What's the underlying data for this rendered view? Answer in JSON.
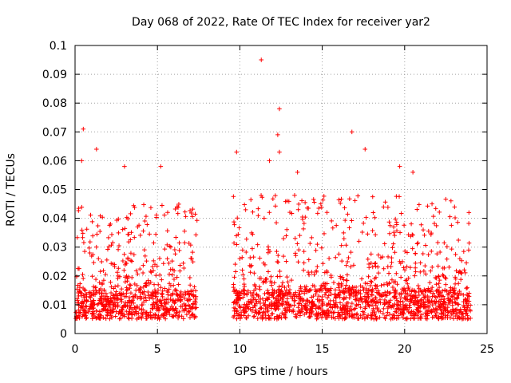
{
  "chart_data": {
    "type": "scatter",
    "title": "Day 068 of 2022, Rate Of TEC Index for receiver yar2",
    "xlabel": "GPS time / hours",
    "ylabel": "ROTI / TECUs",
    "xlim": [
      0,
      25
    ],
    "ylim": [
      0,
      0.1
    ],
    "x_ticks": [
      0,
      5,
      10,
      15,
      20,
      25
    ],
    "x_tick_labels": [
      "0",
      "5",
      "10",
      "15",
      "20",
      "25"
    ],
    "y_ticks": [
      0,
      0.01,
      0.02,
      0.03,
      0.04,
      0.05,
      0.06,
      0.07,
      0.08,
      0.09,
      0.1
    ],
    "y_tick_labels": [
      "0",
      "0.01",
      "0.02",
      "0.03",
      "0.04",
      "0.05",
      "0.06",
      "0.07",
      "0.08",
      "0.09",
      "0.1"
    ],
    "grid": true,
    "marker": "plus",
    "color": "#ff0000",
    "data_gaps_hours": [
      [
        7.4,
        9.6
      ]
    ],
    "notable_points": [
      {
        "x": 0.5,
        "y": 0.071
      },
      {
        "x": 0.4,
        "y": 0.06
      },
      {
        "x": 1.3,
        "y": 0.064
      },
      {
        "x": 3.0,
        "y": 0.058
      },
      {
        "x": 5.2,
        "y": 0.058
      },
      {
        "x": 9.8,
        "y": 0.063
      },
      {
        "x": 11.3,
        "y": 0.095
      },
      {
        "x": 11.8,
        "y": 0.06
      },
      {
        "x": 12.4,
        "y": 0.078
      },
      {
        "x": 12.3,
        "y": 0.069
      },
      {
        "x": 12.4,
        "y": 0.063
      },
      {
        "x": 13.5,
        "y": 0.056
      },
      {
        "x": 16.8,
        "y": 0.07
      },
      {
        "x": 17.6,
        "y": 0.064
      },
      {
        "x": 19.7,
        "y": 0.058
      },
      {
        "x": 20.5,
        "y": 0.056
      },
      {
        "x": 23.9,
        "y": 0.042
      }
    ],
    "segments": [
      {
        "x_range": [
          0.0,
          7.4
        ],
        "baseline": [
          0.005,
          0.015
        ],
        "upper": [
          0.015,
          0.045
        ]
      },
      {
        "x_range": [
          9.6,
          24.0
        ],
        "baseline": [
          0.005,
          0.015
        ],
        "upper": [
          0.015,
          0.048
        ]
      }
    ]
  }
}
